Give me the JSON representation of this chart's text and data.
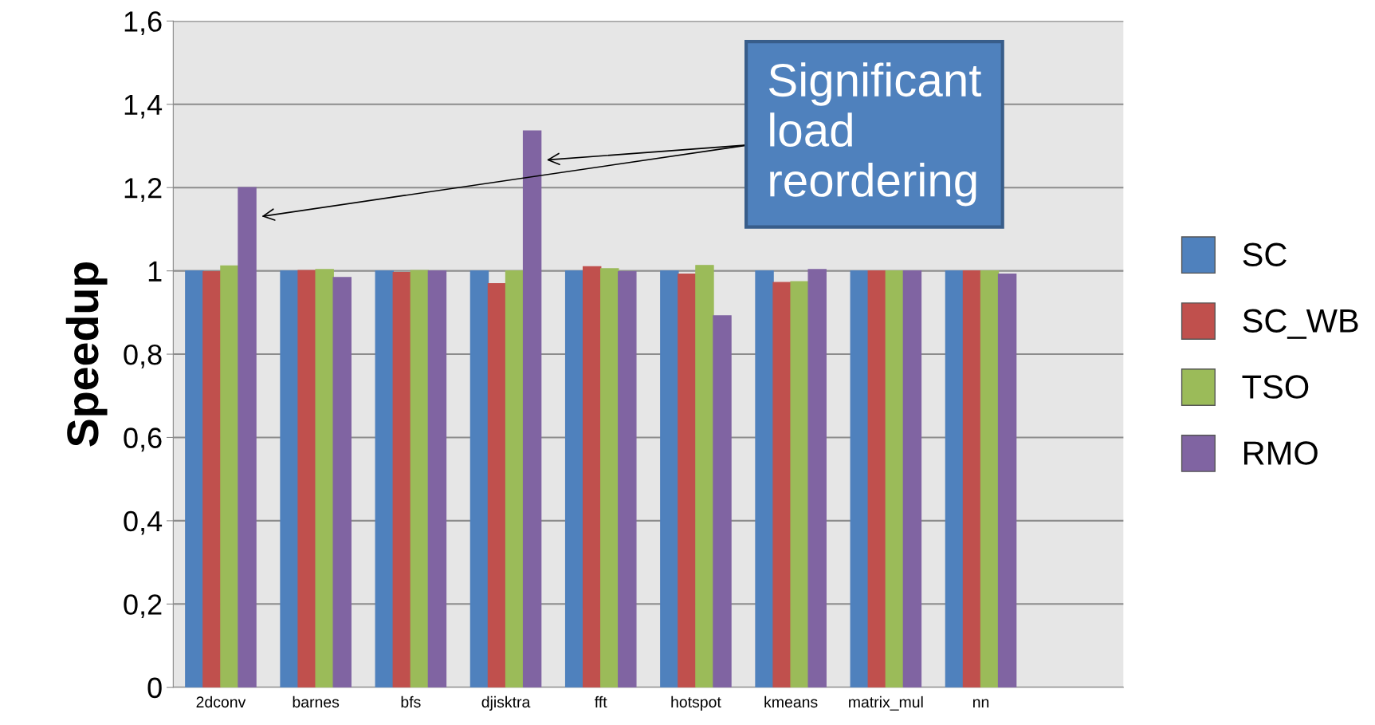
{
  "chart_data": {
    "type": "bar",
    "ylabel": "Speedup",
    "categories": [
      "2dconv",
      "barnes",
      "bfs",
      "djisktra",
      "fft",
      "hotspot",
      "kmeans",
      "matrix_mul",
      "nn"
    ],
    "series": [
      {
        "name": "SC",
        "color": "#4f81bd",
        "values": [
          1,
          1,
          1,
          1,
          1,
          1,
          1,
          1,
          1
        ]
      },
      {
        "name": "SC_WB",
        "color": "#c0504d",
        "values": [
          0.998,
          1.001,
          0.996,
          0.969,
          1.01,
          0.992,
          0.972,
          1,
          1
        ]
      },
      {
        "name": "TSO",
        "color": "#9bbb59",
        "values": [
          1.012,
          1.003,
          1.001,
          1.0,
          1.005,
          1.013,
          0.974,
          1,
          1
        ]
      },
      {
        "name": "RMO",
        "color": "#8064a2",
        "values": [
          1.2,
          0.984,
          1.0,
          1.336,
          0.998,
          0.892,
          1.003,
          1,
          0.992
        ]
      }
    ],
    "ylim": [
      0,
      1.6
    ],
    "yticks": [
      0,
      {
        "value": 0.2,
        "label": "0,2"
      },
      {
        "value": 0.4,
        "label": "0,4"
      },
      {
        "value": 0.6,
        "label": "0,6"
      },
      {
        "value": 0.8,
        "label": "0,8"
      },
      1,
      {
        "value": 1.2,
        "label": "1,2"
      },
      {
        "value": 1.4,
        "label": "1,4"
      },
      {
        "value": 1.6,
        "label": "1,6"
      }
    ],
    "grid": "y",
    "legend": "right",
    "annotations": [
      "Significant load reordering"
    ]
  }
}
